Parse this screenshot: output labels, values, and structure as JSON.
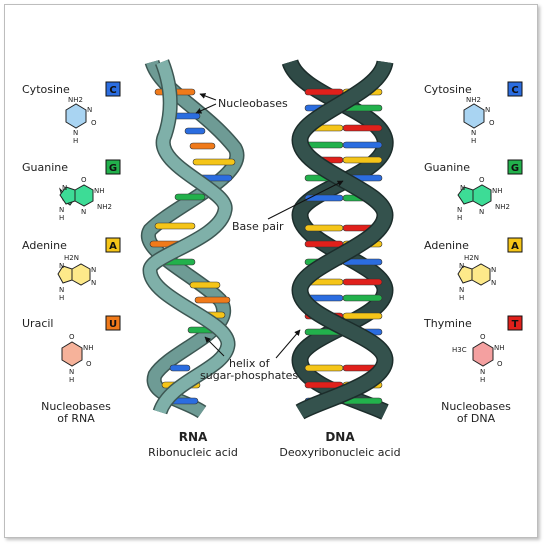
{
  "colors": {
    "cytosine": "#2b6de0",
    "guanine": "#22b14c",
    "adenine": "#f5c518",
    "uracil": "#f07a1a",
    "thymine": "#e0201b",
    "rna_backbone": "#6e9b95",
    "dna_backbone": "#2f4a46",
    "cytosine_ring": "#a9d4f2",
    "guanine_ring": "#3ddc96",
    "adenine_ring": "#fde98a",
    "uracil_ring": "#f6b29a",
    "thymine_ring": "#f4a0a0"
  },
  "rna_bases": {
    "cytosine": {
      "name": "Cytosine",
      "letter": "C",
      "subs": [
        "NH2",
        "N",
        "N",
        "O",
        "H"
      ]
    },
    "guanine": {
      "name": "Guanine",
      "letter": "G",
      "subs": [
        "O",
        "N",
        "NH",
        "NH2",
        "N",
        "N",
        "H"
      ]
    },
    "adenine": {
      "name": "Adenine",
      "letter": "A",
      "subs": [
        "H2N",
        "N",
        "N",
        "N",
        "N",
        "H"
      ]
    },
    "uracil": {
      "name": "Uracil",
      "letter": "U",
      "subs": [
        "O",
        "NH",
        "N",
        "O",
        "H"
      ]
    },
    "caption_line1": "Nucleobases",
    "caption_line2": "of RNA"
  },
  "dna_bases": {
    "cytosine": {
      "name": "Cytosine",
      "letter": "C",
      "subs": [
        "NH2",
        "N",
        "N",
        "O",
        "H"
      ]
    },
    "guanine": {
      "name": "Guanine",
      "letter": "G",
      "subs": [
        "O",
        "N",
        "NH",
        "NH2",
        "N",
        "N",
        "H"
      ]
    },
    "adenine": {
      "name": "Adenine",
      "letter": "A",
      "subs": [
        "H2N",
        "N",
        "N",
        "N",
        "N",
        "H"
      ]
    },
    "thymine": {
      "name": "Thymine",
      "letter": "T",
      "subs": [
        "O",
        "H3C",
        "NH",
        "N",
        "O",
        "H"
      ]
    },
    "caption_line1": "Nucleobases",
    "caption_line2": "of DNA"
  },
  "annotations": {
    "nucleobases": "Nucleobases",
    "base_pair": "Base pair",
    "helix_line1": "helix of",
    "helix_line2": "sugar-phosphates"
  },
  "rna": {
    "title": "RNA",
    "subtitle": "Ribonucleic acid"
  },
  "dna": {
    "title": "DNA",
    "subtitle": "Deoxyribonucleic acid"
  }
}
